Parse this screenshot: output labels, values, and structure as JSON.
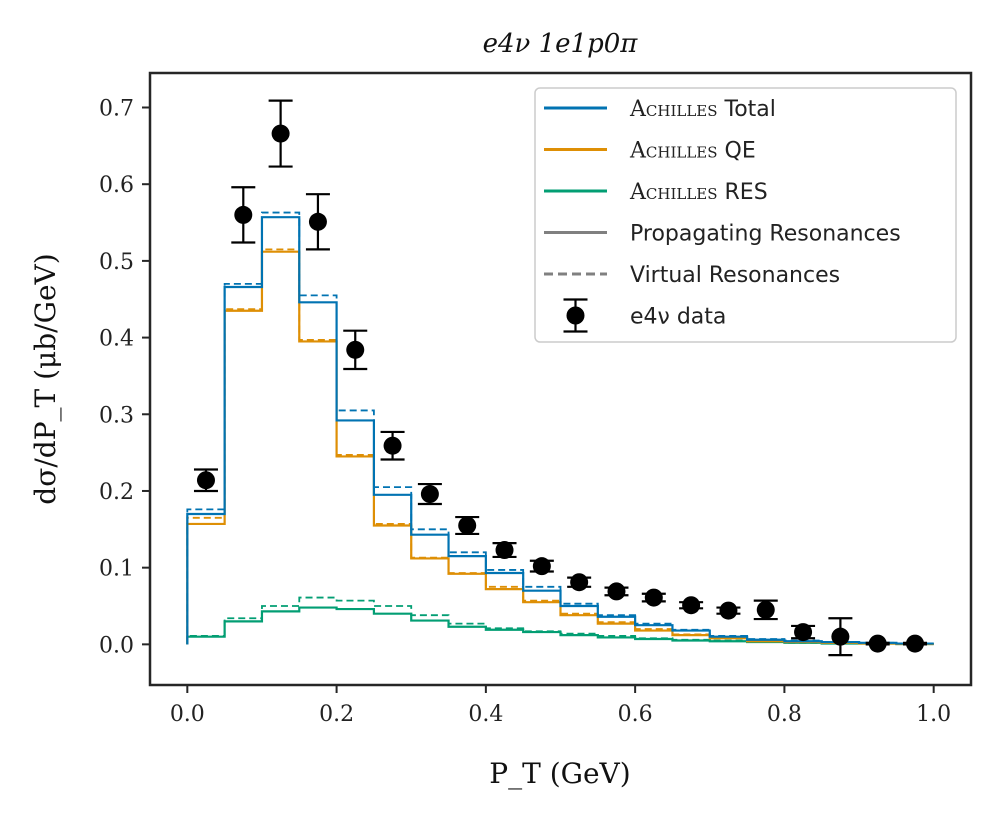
{
  "chart_data": {
    "type": "step",
    "title": "e4ν 1e1p0π",
    "xlabel": "P_T (GeV)",
    "ylabel": "dσ/dP_T (μb/GeV)",
    "xlim": [
      -0.05,
      1.05
    ],
    "ylim": [
      -0.053,
      0.745
    ],
    "xticks": [
      "0.0",
      "0.2",
      "0.4",
      "0.6",
      "0.8",
      "1.0"
    ],
    "xtick_values": [
      0.0,
      0.2,
      0.4,
      0.6,
      0.8,
      1.0
    ],
    "yticks": [
      "0.0",
      "0.1",
      "0.2",
      "0.3",
      "0.4",
      "0.5",
      "0.6",
      "0.7"
    ],
    "ytick_values": [
      0.0,
      0.1,
      0.2,
      0.3,
      0.4,
      0.5,
      0.6,
      0.7
    ],
    "bin_edges": [
      0.0,
      0.05,
      0.1,
      0.15,
      0.2,
      0.25,
      0.3,
      0.35,
      0.4,
      0.45,
      0.5,
      0.55,
      0.6,
      0.65,
      0.7,
      0.75,
      0.8,
      0.85,
      0.9,
      0.95,
      1.0
    ],
    "colors": {
      "total": "#0173b2",
      "qe": "#de8f05",
      "res": "#029e73",
      "data": "#000000",
      "legend_gray": "#808080",
      "axis": "#262626"
    },
    "series": [
      {
        "name": "Achilles Total (propagating)",
        "key": "total",
        "style": "solid",
        "values": [
          0.17,
          0.466,
          0.557,
          0.446,
          0.292,
          0.195,
          0.143,
          0.115,
          0.093,
          0.07,
          0.05,
          0.036,
          0.025,
          0.018,
          0.01,
          0.006,
          0.004,
          0.003,
          0.002,
          0.001
        ]
      },
      {
        "name": "Achilles Total (virtual)",
        "key": "total",
        "style": "dashed",
        "values": [
          0.176,
          0.47,
          0.563,
          0.455,
          0.305,
          0.205,
          0.15,
          0.12,
          0.097,
          0.075,
          0.053,
          0.038,
          0.027,
          0.019,
          0.011,
          0.007,
          0.005,
          0.003,
          0.002,
          0.001
        ]
      },
      {
        "name": "Achilles QE (propagating)",
        "key": "qe",
        "style": "solid",
        "values": [
          0.157,
          0.435,
          0.512,
          0.395,
          0.245,
          0.155,
          0.112,
          0.092,
          0.072,
          0.055,
          0.038,
          0.027,
          0.018,
          0.012,
          0.008,
          0.004,
          0.003,
          0.002,
          0.001,
          0.0005
        ]
      },
      {
        "name": "Achilles QE (virtual)",
        "key": "qe",
        "style": "dashed",
        "values": [
          0.165,
          0.437,
          0.515,
          0.397,
          0.247,
          0.157,
          0.113,
          0.093,
          0.075,
          0.057,
          0.04,
          0.029,
          0.02,
          0.013,
          0.009,
          0.005,
          0.003,
          0.002,
          0.001,
          0.0005
        ]
      },
      {
        "name": "Achilles RES (propagating)",
        "key": "res",
        "style": "solid",
        "values": [
          0.01,
          0.03,
          0.043,
          0.048,
          0.046,
          0.04,
          0.031,
          0.023,
          0.019,
          0.016,
          0.012,
          0.009,
          0.007,
          0.005,
          0.004,
          0.003,
          0.002,
          0.001,
          0.001,
          0.0005
        ]
      },
      {
        "name": "Achilles RES (virtual)",
        "key": "res",
        "style": "dashed",
        "values": [
          0.011,
          0.034,
          0.05,
          0.061,
          0.057,
          0.05,
          0.038,
          0.027,
          0.021,
          0.017,
          0.014,
          0.011,
          0.008,
          0.006,
          0.005,
          0.003,
          0.002,
          0.001,
          0.001,
          0.0005
        ]
      }
    ],
    "data_points": {
      "name": "e4ν data",
      "x": [
        0.025,
        0.075,
        0.125,
        0.175,
        0.225,
        0.275,
        0.325,
        0.375,
        0.425,
        0.475,
        0.525,
        0.575,
        0.625,
        0.675,
        0.725,
        0.775,
        0.825,
        0.875,
        0.925,
        0.975
      ],
      "y": [
        0.214,
        0.56,
        0.666,
        0.551,
        0.384,
        0.259,
        0.196,
        0.155,
        0.123,
        0.102,
        0.081,
        0.069,
        0.061,
        0.051,
        0.044,
        0.045,
        0.016,
        0.01,
        0.001,
        0.001
      ],
      "yerr": [
        0.014,
        0.036,
        0.043,
        0.036,
        0.025,
        0.018,
        0.013,
        0.011,
        0.009,
        0.007,
        0.006,
        0.005,
        0.005,
        0.004,
        0.004,
        0.012,
        0.008,
        0.024,
        0.001,
        0.001
      ]
    },
    "legend": {
      "placement": "top-right",
      "entries": [
        {
          "smallcaps": "Achilles",
          "rest": " Total",
          "kind": "line",
          "color_key": "total"
        },
        {
          "smallcaps": "Achilles",
          "rest": " QE",
          "kind": "line",
          "color_key": "qe"
        },
        {
          "smallcaps": "Achilles",
          "rest": " RES",
          "kind": "line",
          "color_key": "res"
        },
        {
          "smallcaps": "",
          "rest": "Propagating Resonances",
          "kind": "line",
          "color_key": "legend_gray"
        },
        {
          "smallcaps": "",
          "rest": "Virtual Resonances",
          "kind": "dashed",
          "color_key": "legend_gray"
        },
        {
          "smallcaps": "",
          "rest": "e4ν data",
          "kind": "errorbar",
          "color_key": "data"
        }
      ]
    }
  }
}
